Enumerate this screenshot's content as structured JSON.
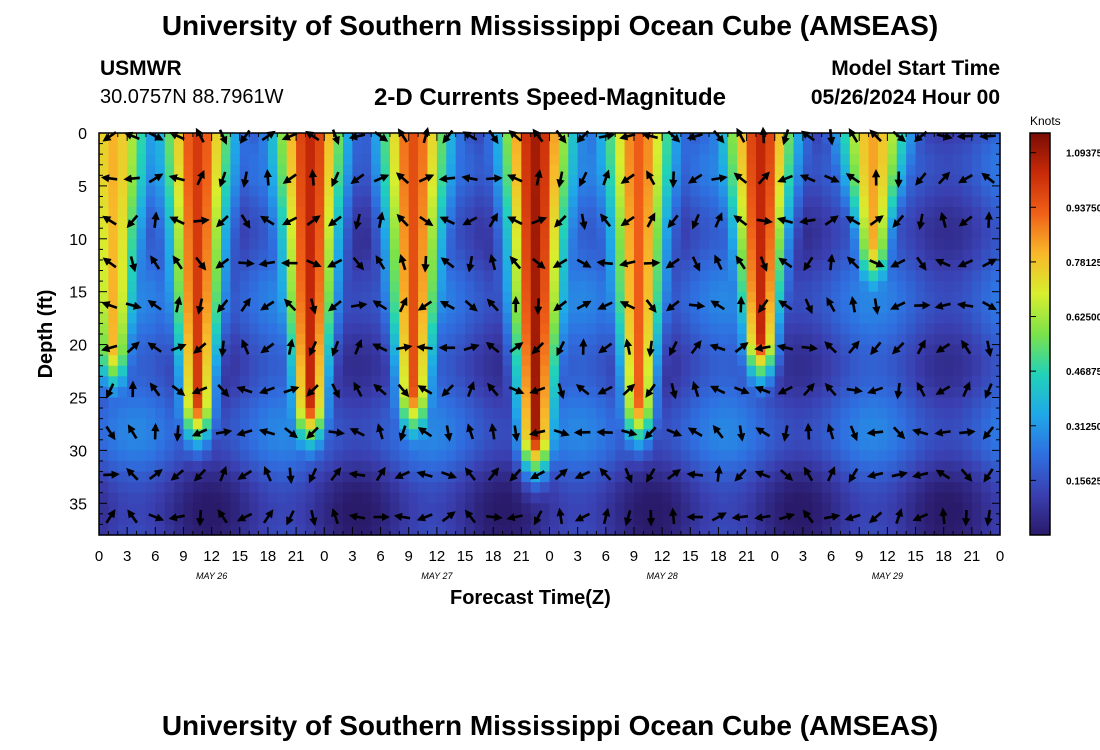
{
  "header": {
    "title": "University of Southern Mississippi Ocean Cube (AMSEAS)",
    "station": "USMWR",
    "coords": "30.0757N  88.7961W",
    "subtitle": "2-D Currents Speed-Magnitude",
    "model_label": "Model Start Time",
    "model_time": "05/26/2024 Hour 00"
  },
  "footer": {
    "title": "University of Southern Mississippi Ocean Cube (AMSEAS)"
  },
  "chart_data": {
    "type": "heatmap",
    "title": "2-D Currents Speed-Magnitude",
    "xlabel": "Forecast Time(Z)",
    "ylabel": "Depth (ft)",
    "xlim": [
      0,
      96
    ],
    "ylim": [
      0,
      38
    ],
    "x_ticks": [
      0,
      3,
      6,
      9,
      12,
      15,
      18,
      21,
      24,
      27,
      30,
      33,
      36,
      39,
      42,
      45,
      48,
      51,
      54,
      57,
      60,
      63,
      66,
      69,
      72,
      75,
      78,
      81,
      84,
      87,
      90,
      93,
      96
    ],
    "x_tick_labels": [
      "0",
      "3",
      "6",
      "9",
      "12",
      "15",
      "18",
      "21",
      "0",
      "3",
      "6",
      "9",
      "12",
      "15",
      "18",
      "21",
      "0",
      "3",
      "6",
      "9",
      "12",
      "15",
      "18",
      "21",
      "0",
      "3",
      "6",
      "9",
      "12",
      "15",
      "18",
      "21",
      "0"
    ],
    "day_labels": [
      {
        "x": 12,
        "label": "MAY 26"
      },
      {
        "x": 36,
        "label": "MAY 27"
      },
      {
        "x": 60,
        "label": "MAY 28"
      },
      {
        "x": 84,
        "label": "MAY 29"
      }
    ],
    "y_ticks": [
      0,
      5,
      10,
      15,
      20,
      25,
      30,
      35
    ],
    "y_tick_labels": [
      "0",
      "5",
      "10",
      "15",
      "20",
      "25",
      "30",
      "35"
    ],
    "colorbar": {
      "unit": "Knots",
      "min": 0.0,
      "max": 1.15,
      "tick_values": [
        1.09375,
        0.9375,
        0.78125,
        0.625,
        0.46875,
        0.3125,
        0.15625
      ],
      "tick_labels": [
        "1.09375",
        "0.93750",
        "0.78125",
        "0.62500",
        "0.46875",
        "0.31250",
        "0.15625"
      ],
      "colors": [
        "#2a1a6a",
        "#3a3fb0",
        "#2f6fe0",
        "#1fa8e8",
        "#22d2b8",
        "#7be24a",
        "#d8ee2e",
        "#f8b82a",
        "#f06018",
        "#c82a08",
        "#7a0c04"
      ]
    },
    "peaks": [
      {
        "time": 1.5,
        "depth_max": 20,
        "speed": 0.78
      },
      {
        "time": 10.5,
        "depth_max": 25,
        "speed": 1.0
      },
      {
        "time": 22.5,
        "depth_max": 25,
        "speed": 1.05
      },
      {
        "time": 33.5,
        "depth_max": 24,
        "speed": 0.95
      },
      {
        "time": 46.5,
        "depth_max": 28,
        "speed": 1.1
      },
      {
        "time": 57.5,
        "depth_max": 25,
        "speed": 0.92
      },
      {
        "time": 70.5,
        "depth_max": 19,
        "speed": 1.05
      },
      {
        "time": 82.5,
        "depth_max": 10,
        "speed": 0.8
      }
    ],
    "vector_rows_depth_ft": [
      0,
      4,
      8,
      12,
      16,
      20,
      24,
      28,
      32,
      36
    ],
    "vector_col_spacing_hours": 2.4
  }
}
